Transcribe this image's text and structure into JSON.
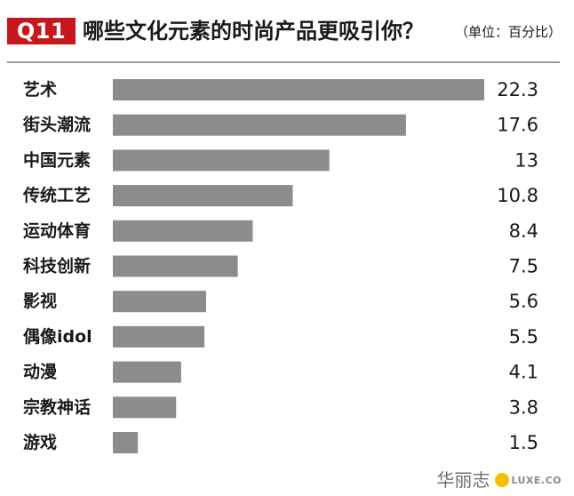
{
  "header": {
    "badge": "Q11",
    "title": "哪些文化元素的时尚产品更吸引你？",
    "unit": "（单位：百分比）"
  },
  "colors": {
    "badge": "#c8161d",
    "bar": "#8c8c8c",
    "text": "#1a1a1a"
  },
  "chart_data": {
    "type": "bar",
    "orientation": "horizontal",
    "title": "哪些文化元素的时尚产品更吸引你？",
    "unit": "（单位：百分比）",
    "categories": [
      "艺术",
      "街头潮流",
      "中国元素",
      "传统工艺",
      "运动体育",
      "科技创新",
      "影视",
      "偶像idol",
      "动漫",
      "宗教神话",
      "游戏"
    ],
    "values": [
      22.3,
      17.6,
      13,
      10.8,
      8.4,
      7.5,
      5.6,
      5.5,
      4.1,
      3.8,
      1.5
    ],
    "value_labels": [
      "22.3",
      "17.6",
      "13",
      "10.8",
      "8.4",
      "7.5",
      "5.6",
      "5.5",
      "4.1",
      "3.8",
      "1.5"
    ],
    "xlim": [
      0,
      22.3
    ],
    "grid": false,
    "legend": "none"
  },
  "watermark": {
    "text": "华丽志",
    "logo": "LUXE.CO"
  }
}
